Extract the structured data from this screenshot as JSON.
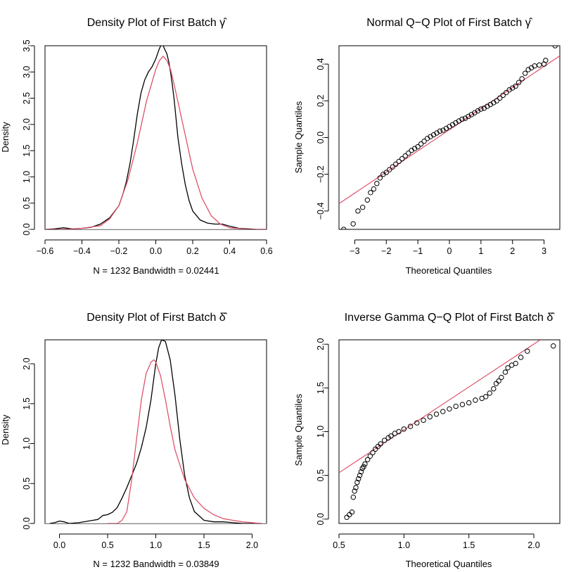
{
  "panels": {
    "p1": {
      "title": "Density Plot of First Batch γ̂",
      "xlabel": "N = 1232   Bandwidth = 0.02441",
      "ylabel": "Density"
    },
    "p2": {
      "title": "Normal Q−Q Plot of First Batch γ̂",
      "xlabel": "Theoretical Quantiles",
      "ylabel": "Sample Quantiles"
    },
    "p3": {
      "title": "Density Plot of First Batch δ̂",
      "xlabel": "N = 1232   Bandwidth = 0.03849",
      "ylabel": "Density"
    },
    "p4": {
      "title": "Inverse Gamma Q−Q Plot of First Batch δ̂",
      "xlabel": "Theoretical Quantiles",
      "ylabel": "Sample Quantiles"
    }
  },
  "chart_data": [
    {
      "id": "p1",
      "type": "line",
      "title": "Density Plot of First Batch γ̂",
      "xlabel": "N = 1232   Bandwidth = 0.02441",
      "ylabel": "Density",
      "xlim": [
        -0.6,
        0.6
      ],
      "ylim": [
        0,
        3.5
      ],
      "xticks": [
        -0.6,
        -0.4,
        -0.2,
        0.0,
        0.2,
        0.4,
        0.6
      ],
      "xtick_labels": [
        "−0.6",
        "−0.4",
        "−0.2",
        "0.0",
        "0.2",
        "0.4",
        "0.6"
      ],
      "yticks": [
        0.0,
        0.5,
        1.0,
        1.5,
        2.0,
        2.5,
        3.0,
        3.5
      ],
      "ytick_labels": [
        "0.0",
        "0.5",
        "1.0",
        "1.5",
        "2.0",
        "2.5",
        "3.0",
        "3.5"
      ],
      "baseline": 0,
      "series": [
        {
          "color": "#000000",
          "x": [
            -0.6,
            -0.55,
            -0.5,
            -0.45,
            -0.4,
            -0.35,
            -0.3,
            -0.25,
            -0.2,
            -0.18,
            -0.16,
            -0.14,
            -0.12,
            -0.1,
            -0.08,
            -0.06,
            -0.04,
            -0.02,
            0.0,
            0.01,
            0.02,
            0.03,
            0.04,
            0.05,
            0.06,
            0.07,
            0.08,
            0.09,
            0.1,
            0.11,
            0.12,
            0.14,
            0.16,
            0.18,
            0.2,
            0.24,
            0.28,
            0.32,
            0.36,
            0.4,
            0.45,
            0.5,
            0.55,
            0.6
          ],
          "y": [
            0,
            0.01,
            0.03,
            0.01,
            0.02,
            0.04,
            0.1,
            0.22,
            0.45,
            0.65,
            0.9,
            1.25,
            1.7,
            2.2,
            2.6,
            2.85,
            3.0,
            3.1,
            3.25,
            3.35,
            3.45,
            3.52,
            3.5,
            3.42,
            3.35,
            3.2,
            3.0,
            2.75,
            2.45,
            2.1,
            1.75,
            1.25,
            0.85,
            0.55,
            0.35,
            0.18,
            0.12,
            0.1,
            0.1,
            0.06,
            0.02,
            0.01,
            0.0,
            0
          ]
        },
        {
          "color": "#DF536B",
          "x": [
            -0.6,
            -0.5,
            -0.4,
            -0.3,
            -0.25,
            -0.2,
            -0.15,
            -0.1,
            -0.05,
            0.0,
            0.02,
            0.04,
            0.06,
            0.08,
            0.1,
            0.15,
            0.2,
            0.25,
            0.3,
            0.35,
            0.4,
            0.5,
            0.6
          ],
          "y": [
            0,
            0.0,
            0.02,
            0.07,
            0.2,
            0.45,
            0.95,
            1.65,
            2.45,
            3.05,
            3.22,
            3.3,
            3.22,
            3.05,
            2.75,
            1.95,
            1.15,
            0.6,
            0.26,
            0.1,
            0.03,
            0.0,
            0
          ]
        }
      ]
    },
    {
      "id": "p2",
      "type": "scatter",
      "title": "Normal Q−Q Plot of First Batch γ̂",
      "xlabel": "Theoretical Quantiles",
      "ylabel": "Sample Quantiles",
      "xlim": [
        -3.5,
        3.5
      ],
      "ylim": [
        -0.5,
        0.5
      ],
      "xticks": [
        -3,
        -2,
        -1,
        0,
        1,
        2,
        3
      ],
      "xtick_labels": [
        "−3",
        "−2",
        "−1",
        "0",
        "1",
        "2",
        "3"
      ],
      "yticks": [
        -0.4,
        -0.2,
        0.0,
        0.2,
        0.4
      ],
      "ytick_labels": [
        "−0.4",
        "−0.2",
        "0.0",
        "0.2",
        "0.4"
      ],
      "series": [
        {
          "color": "#000000",
          "x": [
            -3.35,
            -3.05,
            -2.9,
            -2.75,
            -2.6,
            -2.5,
            -2.4,
            -2.3,
            -2.2,
            -2.1,
            -2.0,
            -1.9,
            -1.8,
            -1.7,
            -1.6,
            -1.5,
            -1.4,
            -1.3,
            -1.2,
            -1.1,
            -1.0,
            -0.9,
            -0.8,
            -0.7,
            -0.6,
            -0.5,
            -0.4,
            -0.3,
            -0.2,
            -0.1,
            0.0,
            0.1,
            0.2,
            0.3,
            0.4,
            0.5,
            0.6,
            0.7,
            0.8,
            0.9,
            1.0,
            1.1,
            1.2,
            1.3,
            1.4,
            1.5,
            1.6,
            1.7,
            1.8,
            1.9,
            2.0,
            2.1,
            2.2,
            2.3,
            2.4,
            2.5,
            2.6,
            2.7,
            2.85,
            3.0,
            3.05,
            3.35
          ],
          "y": [
            -0.5,
            -0.47,
            -0.4,
            -0.38,
            -0.34,
            -0.3,
            -0.28,
            -0.25,
            -0.22,
            -0.2,
            -0.19,
            -0.175,
            -0.16,
            -0.145,
            -0.13,
            -0.115,
            -0.1,
            -0.085,
            -0.07,
            -0.06,
            -0.05,
            -0.035,
            -0.02,
            -0.005,
            0.005,
            0.015,
            0.025,
            0.035,
            0.04,
            0.05,
            0.06,
            0.07,
            0.08,
            0.09,
            0.1,
            0.105,
            0.115,
            0.125,
            0.135,
            0.145,
            0.155,
            0.16,
            0.17,
            0.18,
            0.19,
            0.2,
            0.215,
            0.23,
            0.245,
            0.26,
            0.27,
            0.28,
            0.3,
            0.32,
            0.35,
            0.37,
            0.38,
            0.39,
            0.395,
            0.4,
            0.42,
            0.5
          ]
        }
      ],
      "reference_line": {
        "color": "#DF536B",
        "points": [
          [
            -3.5,
            -0.36
          ],
          [
            3.5,
            0.445
          ]
        ]
      }
    },
    {
      "id": "p3",
      "type": "line",
      "title": "Density Plot of First Batch δ̂",
      "xlabel": "N = 1232   Bandwidth = 0.03849",
      "ylabel": "Density",
      "xlim": [
        -0.15,
        2.15
      ],
      "ylim": [
        0,
        2.3
      ],
      "xticks": [
        0.0,
        0.5,
        1.0,
        1.5,
        2.0
      ],
      "xtick_labels": [
        "0.0",
        "0.5",
        "1.0",
        "1.5",
        "2.0"
      ],
      "yticks": [
        0.0,
        0.5,
        1.0,
        1.5,
        2.0
      ],
      "ytick_labels": [
        "0.0",
        "0.5",
        "1.0",
        "1.5",
        "2.0"
      ],
      "baseline": 0,
      "series": [
        {
          "color": "#000000",
          "x": [
            -0.1,
            -0.05,
            0.0,
            0.05,
            0.1,
            0.2,
            0.3,
            0.4,
            0.45,
            0.5,
            0.55,
            0.6,
            0.65,
            0.7,
            0.75,
            0.8,
            0.85,
            0.9,
            0.95,
            1.0,
            1.03,
            1.06,
            1.1,
            1.15,
            1.2,
            1.25,
            1.3,
            1.35,
            1.4,
            1.5,
            1.6,
            1.7,
            1.8,
            1.9,
            2.0,
            2.1
          ],
          "y": [
            0,
            0.01,
            0.03,
            0.02,
            0.0,
            0.01,
            0.03,
            0.05,
            0.1,
            0.11,
            0.14,
            0.2,
            0.32,
            0.45,
            0.6,
            0.75,
            0.95,
            1.2,
            1.55,
            2.0,
            2.2,
            2.3,
            2.28,
            2.05,
            1.6,
            1.05,
            0.6,
            0.32,
            0.15,
            0.04,
            0.02,
            0.02,
            0.01,
            0.0,
            0.0,
            0
          ]
        },
        {
          "color": "#DF536B",
          "x": [
            0.5,
            0.6,
            0.65,
            0.7,
            0.75,
            0.8,
            0.85,
            0.9,
            0.95,
            0.98,
            1.0,
            1.05,
            1.1,
            1.15,
            1.2,
            1.3,
            1.4,
            1.5,
            1.6,
            1.7,
            1.8,
            1.9,
            2.0,
            2.1
          ],
          "y": [
            0,
            0.0,
            0.04,
            0.15,
            0.55,
            1.05,
            1.55,
            1.88,
            2.02,
            2.05,
            2.02,
            1.85,
            1.55,
            1.22,
            0.92,
            0.55,
            0.32,
            0.19,
            0.11,
            0.06,
            0.04,
            0.02,
            0.01,
            0
          ]
        }
      ]
    },
    {
      "id": "p4",
      "type": "scatter",
      "title": "Inverse Gamma Q−Q Plot of First Batch δ̂",
      "xlabel": "Theoretical Quantiles",
      "ylabel": "Sample Quantiles",
      "xlim": [
        0.5,
        2.2
      ],
      "ylim": [
        -0.05,
        2.05
      ],
      "xticks": [
        0.5,
        1.0,
        1.5,
        2.0
      ],
      "xtick_labels": [
        "0.5",
        "1.0",
        "1.5",
        "2.0"
      ],
      "yticks": [
        0.0,
        0.5,
        1.0,
        1.5,
        2.0
      ],
      "ytick_labels": [
        "0.0",
        "0.5",
        "1.0",
        "1.5",
        "2.0"
      ],
      "series": [
        {
          "color": "#000000",
          "x": [
            0.56,
            0.58,
            0.6,
            0.61,
            0.62,
            0.63,
            0.64,
            0.65,
            0.66,
            0.67,
            0.68,
            0.69,
            0.7,
            0.72,
            0.74,
            0.76,
            0.78,
            0.8,
            0.82,
            0.85,
            0.88,
            0.9,
            0.93,
            0.96,
            1.0,
            1.05,
            1.1,
            1.15,
            1.2,
            1.25,
            1.3,
            1.35,
            1.4,
            1.45,
            1.5,
            1.55,
            1.6,
            1.63,
            1.66,
            1.69,
            1.71,
            1.73,
            1.75,
            1.78,
            1.8,
            1.83,
            1.86,
            1.9,
            1.95,
            2.15
          ],
          "y": [
            0.02,
            0.05,
            0.08,
            0.25,
            0.32,
            0.36,
            0.42,
            0.46,
            0.5,
            0.54,
            0.58,
            0.6,
            0.63,
            0.68,
            0.72,
            0.76,
            0.8,
            0.83,
            0.86,
            0.9,
            0.93,
            0.95,
            0.98,
            1.0,
            1.03,
            1.06,
            1.1,
            1.13,
            1.17,
            1.2,
            1.23,
            1.26,
            1.29,
            1.31,
            1.33,
            1.36,
            1.38,
            1.4,
            1.44,
            1.49,
            1.55,
            1.58,
            1.62,
            1.68,
            1.73,
            1.76,
            1.78,
            1.85,
            1.92,
            1.98
          ]
        }
      ],
      "reference_line": {
        "color": "#DF536B",
        "points": [
          [
            0.5,
            0.53
          ],
          [
            2.05,
            2.05
          ]
        ]
      }
    }
  ]
}
